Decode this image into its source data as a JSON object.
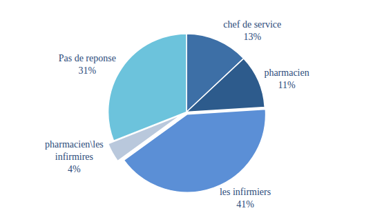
{
  "chart_data": {
    "type": "pie",
    "categories": [
      "chef de service",
      "pharmacien",
      "les infirmiers",
      "pharmacien\\les infirmires",
      "Pas de reponse"
    ],
    "values": [
      13,
      11,
      41,
      4,
      31
    ],
    "value_labels": [
      "13%",
      "11%",
      "41%",
      "4%",
      "31%"
    ],
    "colors": [
      "#3d6fa6",
      "#2d5b8c",
      "#5b8fd6",
      "#b9c8dc",
      "#6cc3dc"
    ],
    "data_labels": true,
    "legend": false
  }
}
